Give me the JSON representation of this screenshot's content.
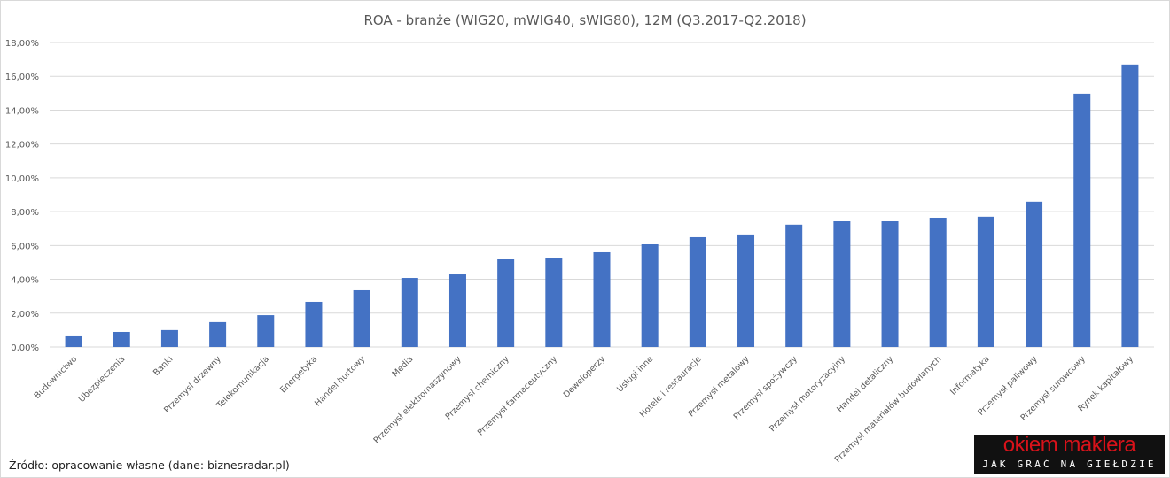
{
  "chart_data": {
    "type": "bar",
    "title": "ROA - branże (WIG20, mWIG40, sWIG80), 12M (Q3.2017-Q2.2018)",
    "categories": [
      "Budownictwo",
      "Ubezpieczenia",
      "Banki",
      "Przemysł drzewny",
      "Telekomunikacja",
      "Energetyka",
      "Handel hurtowy",
      "Media",
      "Przemysł elektromaszynowy",
      "Przemysł chemiczny",
      "Przemysł farmaceutyczny",
      "Deweloperzy",
      "Usługi inne",
      "Hotele i restauracje",
      "Przemysł metalowy",
      "Przemysł spożywczy",
      "Przemysł motoryzacyjny",
      "Handel detaliczny",
      "Przemysł materiałów budowlanych",
      "Informatyka",
      "Przemysł paliwowy",
      "Przemysł surowcowy",
      "Rynek kapitałowy"
    ],
    "values": [
      0.63,
      0.89,
      1.0,
      1.47,
      1.88,
      2.67,
      3.35,
      4.08,
      4.29,
      5.18,
      5.24,
      5.6,
      6.07,
      6.49,
      6.65,
      7.23,
      7.43,
      7.43,
      7.64,
      7.7,
      8.59,
      14.97,
      16.7
    ],
    "ylim": [
      0,
      18
    ],
    "yticks": [
      "0,00%",
      "2,00%",
      "4,00%",
      "6,00%",
      "8,00%",
      "10,00%",
      "12,00%",
      "14,00%",
      "16,00%",
      "18,00%"
    ],
    "xlabel": "",
    "ylabel": "",
    "grid": true,
    "bar_color": "#4472c4"
  },
  "source": "Źródło: opracowanie własne (dane: biznesradar.pl)",
  "logo": {
    "line1": "okiem maklera",
    "line2": "JAK GRAĆ NA GIEŁDZIE"
  }
}
